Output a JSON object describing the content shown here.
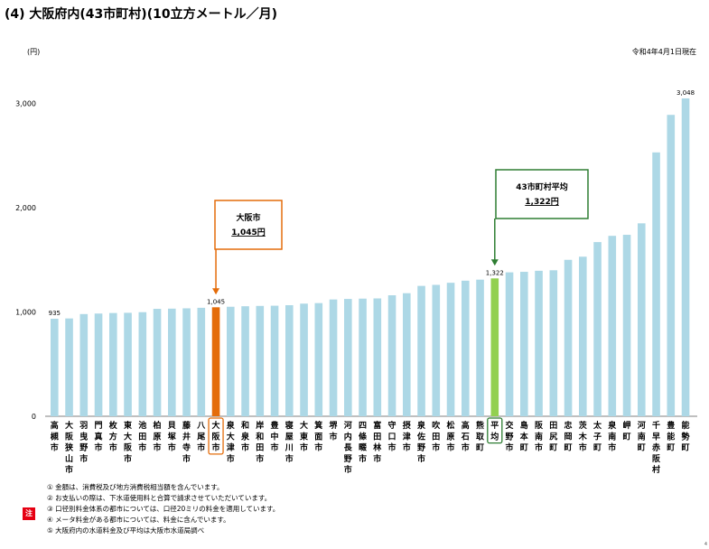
{
  "title": "(4) 大阪府内(43市町村)(10立方メートル／月)",
  "unit_label": "(円)",
  "date_label": "令和4年4月1日現在",
  "colors": {
    "bar": "#add8e6",
    "osaka_bar": "#e46c0a",
    "avg_bar": "#92d050",
    "osaka_box": "#e46c0a",
    "avg_box": "#2e7d32"
  },
  "chart_data": {
    "type": "bar",
    "ylim": [
      0,
      3300
    ],
    "yticks": [
      0,
      1000,
      2000,
      3000
    ],
    "ytick_labels": [
      "0",
      "1,000",
      "2,000",
      "3,000"
    ],
    "categories": [
      "高槻市",
      "大阪狭山市",
      "羽曳野市",
      "門真市",
      "枚方市",
      "東大阪市",
      "池田市",
      "柏原市",
      "貝塚市",
      "藤井寺市",
      "八尾市",
      "大阪市",
      "泉大津市",
      "和泉市",
      "岸和田市",
      "豊中市",
      "寝屋川市",
      "大東市",
      "箕面市",
      "堺市",
      "河内長野市",
      "四條畷市",
      "富田林市",
      "守口市",
      "摂津市",
      "泉佐野市",
      "吹田市",
      "松原市",
      "高石市",
      "熊取町",
      "平均",
      "交野市",
      "島本町",
      "阪南市",
      "田尻町",
      "忠岡町",
      "茨木市",
      "太子町",
      "泉南市",
      "岬町",
      "河南町",
      "千早赤阪村",
      "豊能町",
      "能勢町"
    ],
    "values": [
      935,
      938,
      980,
      985,
      990,
      992,
      998,
      1030,
      1032,
      1035,
      1040,
      1045,
      1050,
      1055,
      1058,
      1060,
      1065,
      1080,
      1085,
      1120,
      1125,
      1128,
      1130,
      1160,
      1180,
      1250,
      1260,
      1280,
      1300,
      1310,
      1322,
      1380,
      1385,
      1395,
      1400,
      1500,
      1530,
      1670,
      1730,
      1740,
      1850,
      2530,
      2890,
      3048
    ],
    "highlight_osaka": 11,
    "highlight_average": 30,
    "data_labels": [
      {
        "index": 0,
        "text": "935"
      },
      {
        "index": 11,
        "text": "1,045"
      },
      {
        "index": 30,
        "text": "1,322"
      },
      {
        "index": 43,
        "text": "3,048"
      }
    ],
    "annotations": [
      {
        "index": 11,
        "line1": "大阪市",
        "line2": "1,045円",
        "color": "#e46c0a"
      },
      {
        "index": 30,
        "line1": "43市町村平均",
        "line2": "1,322円",
        "color": "#2e7d32"
      }
    ]
  },
  "note_badge": "注",
  "notes": [
    "① 金額は、消費税及び地方消費税相当額を含んでいます。",
    "② お支払いの際は、下水道使用料と合算で請求させていただいています。",
    "③ 口径別料金体系の都市については、口径20ミリの料金を適用しています。",
    "④ メータ料金がある都市については、料金に含んでいます。",
    "⑤ 大阪府内の水道料金及び平均は大阪市水道局調べ"
  ],
  "page_number": "4"
}
